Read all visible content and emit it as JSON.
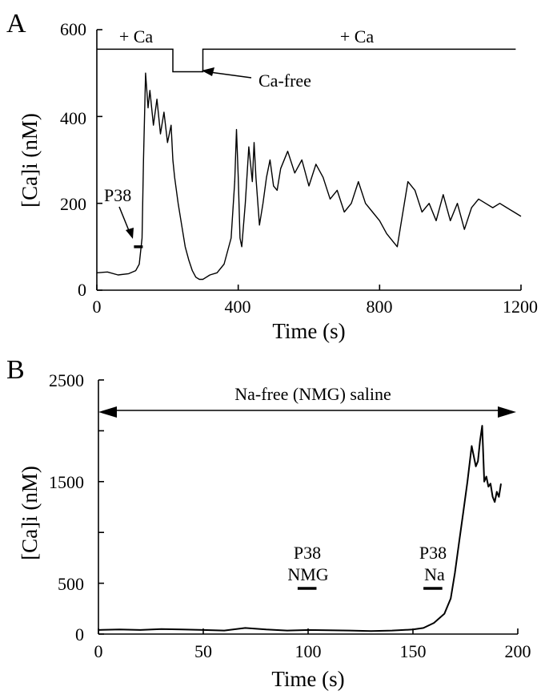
{
  "chart_data": [
    {
      "id": "A",
      "type": "line",
      "panel_label": "A",
      "xlabel": "Time (s)",
      "ylabel": "[Ca]i (nM)",
      "xlim": [
        0,
        1200
      ],
      "ylim": [
        0,
        600
      ],
      "xticks": [
        0,
        400,
        800,
        1200
      ],
      "yticks": [
        0,
        200,
        400,
        600
      ],
      "condition_line": {
        "labels": [
          "+ Ca",
          "Ca-free",
          "+ Ca"
        ],
        "segments": [
          {
            "label": "+ Ca",
            "x": [
              0,
              215
            ],
            "y": 555
          },
          {
            "label": "Ca-free",
            "x": [
              215,
              300
            ],
            "y": 503
          },
          {
            "label": "+ Ca",
            "x": [
              300,
              1185
            ],
            "y": 555
          }
        ]
      },
      "applications": [
        {
          "label": "P38",
          "x": [
            105,
            130
          ],
          "y": 100
        }
      ],
      "series": [
        {
          "x": [
            0,
            30,
            60,
            90,
            110,
            120,
            128,
            132,
            138,
            145,
            150,
            160,
            170,
            180,
            190,
            200,
            210,
            215,
            220,
            230,
            240,
            250,
            260,
            270,
            280,
            290,
            300,
            320,
            340,
            360,
            380,
            390,
            395,
            400,
            405,
            410,
            420,
            430,
            440,
            445,
            450,
            460,
            470,
            480,
            490,
            500,
            510,
            520,
            540,
            560,
            580,
            600,
            620,
            640,
            660,
            680,
            700,
            720,
            740,
            760,
            780,
            800,
            820,
            840,
            850,
            860,
            880,
            900,
            920,
            940,
            960,
            980,
            1000,
            1020,
            1040,
            1060,
            1080,
            1100,
            1120,
            1140,
            1160,
            1180,
            1200
          ],
          "y": [
            40,
            42,
            35,
            38,
            45,
            60,
            120,
            300,
            500,
            420,
            460,
            380,
            440,
            360,
            410,
            340,
            380,
            300,
            260,
            200,
            150,
            100,
            70,
            45,
            30,
            25,
            25,
            35,
            40,
            60,
            120,
            250,
            370,
            260,
            120,
            100,
            200,
            330,
            250,
            340,
            260,
            150,
            200,
            260,
            300,
            240,
            230,
            280,
            320,
            270,
            300,
            240,
            290,
            260,
            210,
            230,
            180,
            200,
            250,
            200,
            180,
            160,
            130,
            110,
            100,
            150,
            250,
            230,
            180,
            200,
            160,
            220,
            160,
            200,
            140,
            190,
            210,
            200,
            190,
            200,
            190,
            180,
            170
          ]
        }
      ]
    },
    {
      "id": "B",
      "type": "line",
      "panel_label": "B",
      "xlabel": "Time (s)",
      "ylabel": "[Ca]i (nM)",
      "xlim": [
        0,
        200
      ],
      "ylim": [
        0,
        2500
      ],
      "xticks": [
        0,
        50,
        100,
        150,
        200
      ],
      "yticks": [
        0,
        500,
        1500,
        2500
      ],
      "condition_line": {
        "label": "Na-free (NMG) saline",
        "x": [
          0,
          200
        ],
        "y": 2200
      },
      "applications": [
        {
          "label_top": "P38",
          "label_bottom": "NMG",
          "x": [
            95,
            104
          ],
          "y": 450
        },
        {
          "label_top": "P38",
          "label_bottom": "Na",
          "x": [
            155,
            164
          ],
          "y": 450
        }
      ],
      "series": [
        {
          "x": [
            0,
            10,
            20,
            30,
            40,
            50,
            60,
            70,
            80,
            90,
            100,
            110,
            120,
            130,
            140,
            150,
            155,
            160,
            165,
            168,
            170,
            172,
            174,
            176,
            178,
            180,
            181,
            182,
            183,
            184,
            185,
            186,
            187,
            188,
            189,
            190,
            191,
            192
          ],
          "y": [
            40,
            45,
            40,
            50,
            45,
            40,
            35,
            60,
            45,
            35,
            40,
            38,
            35,
            30,
            35,
            45,
            60,
            110,
            200,
            350,
            600,
            900,
            1200,
            1500,
            1850,
            1650,
            1700,
            1900,
            2050,
            1500,
            1550,
            1450,
            1480,
            1350,
            1300,
            1400,
            1350,
            1480
          ]
        }
      ]
    }
  ]
}
